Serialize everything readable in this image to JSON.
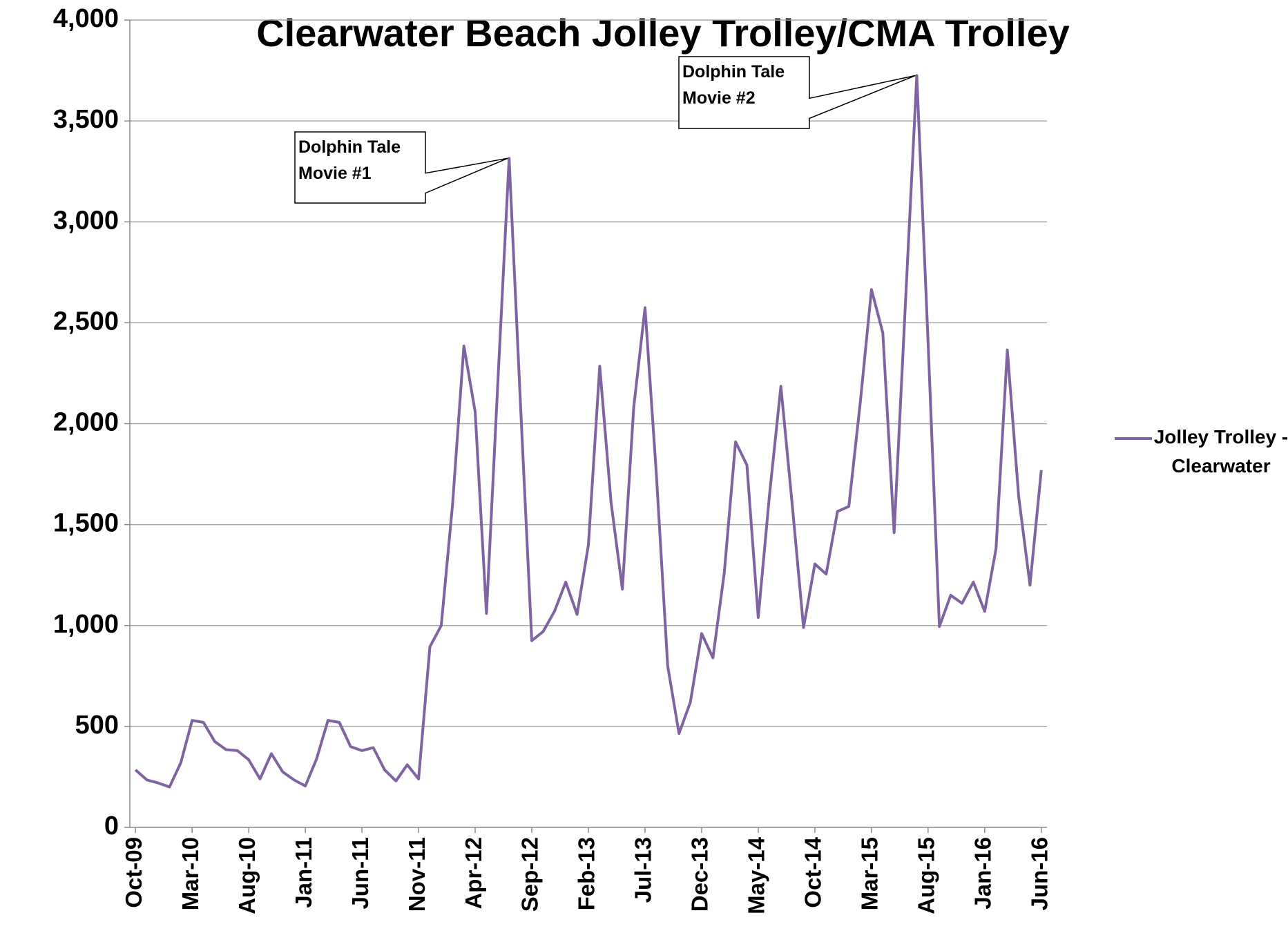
{
  "chart_data": {
    "type": "line",
    "title": "Clearwater Beach Jolley Trolley/CMA Trolley",
    "categories": [
      "Oct-09",
      null,
      null,
      null,
      null,
      "Mar-10",
      null,
      null,
      null,
      null,
      "Aug-10",
      null,
      null,
      null,
      null,
      "Jan-11",
      null,
      null,
      null,
      null,
      "Jun-11",
      null,
      null,
      null,
      null,
      "Nov-11",
      null,
      null,
      null,
      null,
      "Apr-12",
      null,
      null,
      null,
      null,
      "Sep-12",
      null,
      null,
      null,
      null,
      "Feb-13",
      null,
      null,
      null,
      null,
      "Jul-13",
      null,
      null,
      null,
      null,
      "Dec-13",
      null,
      null,
      null,
      null,
      "May-14",
      null,
      null,
      null,
      null,
      "Oct-14",
      null,
      null,
      null,
      null,
      "Mar-15",
      null,
      null,
      null,
      null,
      "Aug-15",
      null,
      null,
      null,
      null,
      "Jan-16",
      null,
      null,
      null,
      null,
      "Jun-16"
    ],
    "series": [
      {
        "name": "Jolley Trolley - Clearwater",
        "color": "#8064a2",
        "values": [
          285,
          235,
          220,
          200,
          320,
          530,
          520,
          425,
          385,
          380,
          335,
          240,
          365,
          275,
          235,
          205,
          340,
          530,
          520,
          400,
          380,
          395,
          285,
          230,
          310,
          240,
          895,
          1000,
          1600,
          2385,
          2060,
          1060,
          2200,
          3315,
          2100,
          925,
          970,
          1070,
          1215,
          1055,
          1400,
          2285,
          1610,
          1180,
          2080,
          2575,
          1750,
          800,
          465,
          620,
          960,
          840,
          1260,
          1910,
          1795,
          1040,
          1650,
          2185,
          1600,
          990,
          1305,
          1255,
          1565,
          1590,
          2100,
          2665,
          2450,
          1460,
          2600,
          3725,
          2400,
          995,
          1150,
          1110,
          1215,
          1070,
          1380,
          2365,
          1640,
          1200,
          1770
        ]
      }
    ],
    "ylim": [
      0,
      4000
    ],
    "yticks": [
      0,
      500,
      {
        "value": 1000,
        "label": "1,000"
      },
      {
        "value": 1500,
        "label": "1,500"
      },
      {
        "value": 2000,
        "label": "2,000"
      },
      {
        "value": 2500,
        "label": "2,500"
      },
      {
        "value": 3000,
        "label": "3,000"
      },
      {
        "value": 3500,
        "label": "3,500"
      },
      {
        "value": 4000,
        "label": "4,000"
      }
    ],
    "grid": true,
    "legend": "right",
    "annotations": [
      "Dolphin Tale Movie #1",
      "Dolphin Tale Movie #2"
    ]
  }
}
